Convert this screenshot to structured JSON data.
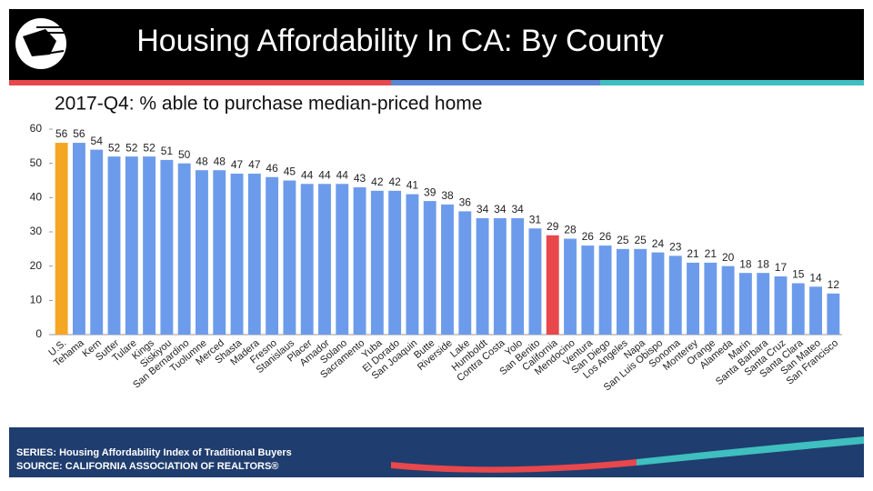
{
  "header": {
    "title": "Housing Affordability In CA: By County"
  },
  "chart_data": {
    "type": "bar",
    "subtitle": "2017-Q4: % able to purchase median-priced home",
    "categories": [
      "U.S.",
      "Tehama",
      "Kern",
      "Sutter",
      "Tulare",
      "Kings",
      "Siskiyou",
      "San Bernardino",
      "Tuolumne",
      "Merced",
      "Shasta",
      "Madera",
      "Fresno",
      "Stanislaus",
      "Placer",
      "Amador",
      "Solano",
      "Sacramento",
      "Yuba",
      "El Dorado",
      "San Joaquin",
      "Butte",
      "Riverside",
      "Lake",
      "Humboldt",
      "Contra Costa",
      "Yolo",
      "San Benito",
      "California",
      "Mendocino",
      "Ventura",
      "San Diego",
      "Los Angeles",
      "Napa",
      "San Luis Obispo",
      "Sonoma",
      "Monterey",
      "Orange",
      "Alameda",
      "Marin",
      "Santa Barbara",
      "Santa Cruz",
      "Santa Clara",
      "San Mateo",
      "San Francisco"
    ],
    "values": [
      56,
      56,
      54,
      52,
      52,
      52,
      51,
      50,
      48,
      48,
      47,
      47,
      46,
      45,
      44,
      44,
      44,
      43,
      42,
      42,
      41,
      39,
      38,
      36,
      34,
      34,
      34,
      31,
      29,
      28,
      26,
      26,
      25,
      25,
      24,
      23,
      21,
      21,
      20,
      18,
      18,
      17,
      15,
      14,
      12
    ],
    "color": "#6d9beb",
    "highlight_colors": {
      "U.S.": "#f5a623",
      "California": "#e8474c"
    },
    "ylim": [
      0,
      60
    ],
    "yticks": [
      0,
      10,
      20,
      30,
      40,
      50,
      60
    ],
    "grid": false
  },
  "footer": {
    "series": "SERIES: Housing Affordability Index of Traditional Buyers",
    "source": "SOURCE: CALIFORNIA ASSOCIATION OF REALTORS®"
  }
}
